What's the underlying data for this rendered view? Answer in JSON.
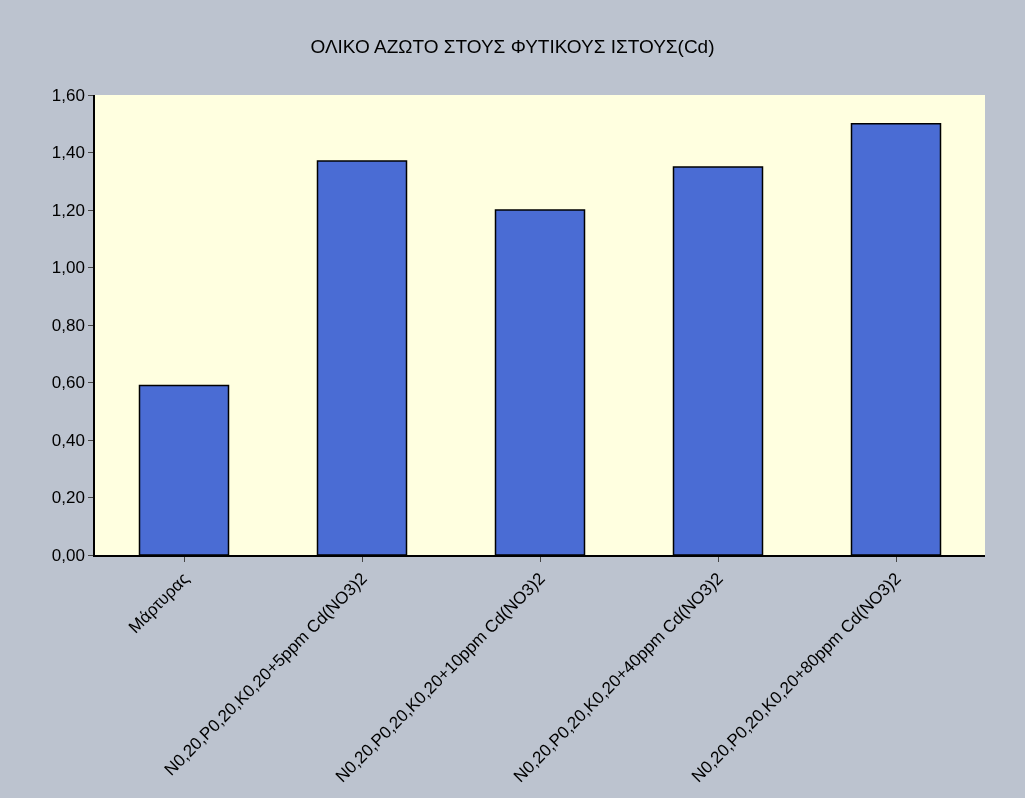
{
  "chart_data": {
    "type": "bar",
    "title": "ΟΛΙΚΟ ΑΖΩΤΟ ΣΤΟΥΣ ΦΥΤΙΚΟΥΣ ΙΣΤΟΥΣ(Cd)",
    "categories": [
      "Μάρτυρας",
      "N0,20,P0,20,K0,20+5ppm Cd(NO3)2",
      "N0,20,P0,20,K0,20+10ppm Cd(NO3)2",
      "N0,20,P0,20,K0,20+40ppm Cd(NO3)2",
      "N0,20,P0,20,K0,20+80ppm Cd(NO3)2"
    ],
    "values": [
      0.59,
      1.37,
      1.2,
      1.35,
      1.5
    ],
    "color": "#4a6cd4",
    "ylim": [
      0,
      1.6
    ],
    "yticks": [
      {
        "value": 0,
        "label": "0,00"
      },
      {
        "value": 0.2,
        "label": "0,20"
      },
      {
        "value": 0.4,
        "label": "0,40"
      },
      {
        "value": 0.6,
        "label": "0,60"
      },
      {
        "value": 0.8,
        "label": "0,80"
      },
      {
        "value": 1.0,
        "label": "1,00"
      },
      {
        "value": 1.2,
        "label": "1,20"
      },
      {
        "value": 1.4,
        "label": "1,40"
      },
      {
        "value": 1.6,
        "label": "1,60"
      }
    ],
    "grid": false
  }
}
